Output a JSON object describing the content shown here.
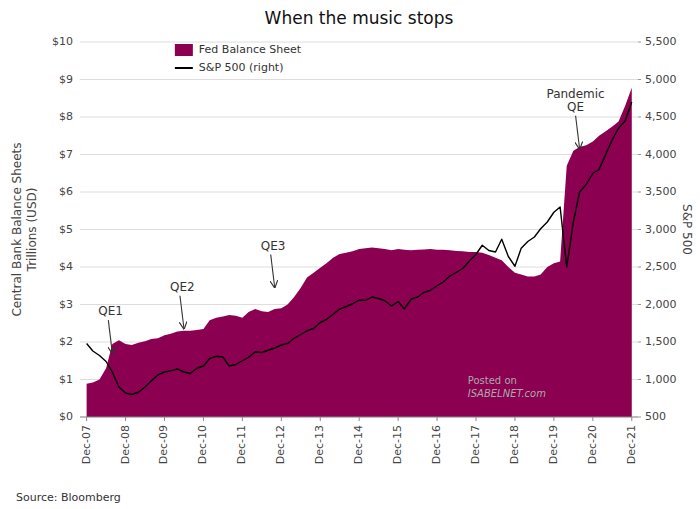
{
  "chart_data": {
    "type": "line",
    "title": "When the music stops",
    "y_label": "Central Bank Balance Sheets\nTrillions (USD)",
    "y2_label": "S&P 500",
    "source": "Source: Bloomberg",
    "watermark": [
      "Posted on",
      "ISABELNET.com"
    ],
    "grid": true,
    "legend": "top-left",
    "x": [
      2007.92,
      2008.08,
      2008.25,
      2008.42,
      2008.58,
      2008.75,
      2008.92,
      2009.08,
      2009.25,
      2009.42,
      2009.58,
      2009.75,
      2009.92,
      2010.08,
      2010.25,
      2010.42,
      2010.58,
      2010.75,
      2010.92,
      2011.08,
      2011.25,
      2011.42,
      2011.58,
      2011.75,
      2011.92,
      2012.08,
      2012.25,
      2012.42,
      2012.58,
      2012.75,
      2012.92,
      2013.08,
      2013.25,
      2013.42,
      2013.58,
      2013.75,
      2013.92,
      2014.08,
      2014.25,
      2014.42,
      2014.58,
      2014.75,
      2014.92,
      2015.08,
      2015.25,
      2015.42,
      2015.58,
      2015.75,
      2015.92,
      2016.08,
      2016.25,
      2016.42,
      2016.58,
      2016.75,
      2016.92,
      2017.08,
      2017.25,
      2017.42,
      2017.58,
      2017.75,
      2017.92,
      2018.08,
      2018.25,
      2018.42,
      2018.58,
      2018.75,
      2018.92,
      2019.08,
      2019.25,
      2019.42,
      2019.58,
      2019.75,
      2019.92,
      2020.08,
      2020.25,
      2020.42,
      2020.58,
      2020.75,
      2020.92,
      2021.08,
      2021.25,
      2021.42,
      2021.58,
      2021.75,
      2021.92
    ],
    "series": [
      {
        "name": "Fed Balance Sheet",
        "type": "area",
        "color": "#8B0050",
        "values": [
          0.89,
          0.92,
          1.0,
          1.3,
          1.95,
          2.05,
          1.95,
          1.92,
          1.98,
          2.02,
          2.08,
          2.1,
          2.18,
          2.22,
          2.28,
          2.3,
          2.3,
          2.32,
          2.35,
          2.58,
          2.65,
          2.68,
          2.72,
          2.7,
          2.65,
          2.8,
          2.88,
          2.82,
          2.8,
          2.88,
          2.9,
          3.0,
          3.2,
          3.45,
          3.72,
          3.85,
          3.98,
          4.1,
          4.25,
          4.35,
          4.38,
          4.42,
          4.48,
          4.5,
          4.52,
          4.5,
          4.48,
          4.45,
          4.48,
          4.46,
          4.45,
          4.46,
          4.47,
          4.48,
          4.46,
          4.46,
          4.45,
          4.43,
          4.42,
          4.4,
          4.4,
          4.38,
          4.32,
          4.25,
          4.18,
          4.0,
          3.85,
          3.8,
          3.75,
          3.75,
          3.8,
          4.0,
          4.1,
          4.15,
          6.7,
          7.1,
          7.2,
          7.25,
          7.35,
          7.5,
          7.62,
          7.75,
          7.88,
          8.3,
          8.78
        ]
      },
      {
        "name": "S&P 500 (right)",
        "type": "line",
        "color": "#000000",
        "axis": "y2",
        "values": [
          1480,
          1380,
          1320,
          1240,
          1100,
          900,
          820,
          800,
          830,
          900,
          980,
          1060,
          1100,
          1115,
          1140,
          1100,
          1080,
          1150,
          1180,
          1280,
          1310,
          1300,
          1180,
          1200,
          1250,
          1295,
          1370,
          1360,
          1390,
          1420,
          1460,
          1480,
          1550,
          1600,
          1650,
          1680,
          1760,
          1800,
          1870,
          1940,
          1970,
          2010,
          2060,
          2055,
          2100,
          2080,
          2050,
          1980,
          2040,
          1940,
          2070,
          2100,
          2160,
          2190,
          2250,
          2300,
          2380,
          2430,
          2480,
          2580,
          2670,
          2790,
          2720,
          2700,
          2870,
          2640,
          2510,
          2750,
          2840,
          2900,
          3010,
          3100,
          3230,
          3300,
          2500,
          3100,
          3500,
          3600,
          3750,
          3800,
          4000,
          4200,
          4350,
          4450,
          4700
        ]
      }
    ],
    "xlim": [
      2007.75,
      2022.08
    ],
    "xticks": [
      {
        "value": 2007.92,
        "label": "Dec-07"
      },
      {
        "value": 2008.92,
        "label": "Dec-08"
      },
      {
        "value": 2009.92,
        "label": "Dec-09"
      },
      {
        "value": 2010.92,
        "label": "Dec-10"
      },
      {
        "value": 2011.92,
        "label": "Dec-11"
      },
      {
        "value": 2012.92,
        "label": "Dec-12"
      },
      {
        "value": 2013.92,
        "label": "Dec-13"
      },
      {
        "value": 2014.92,
        "label": "Dec-14"
      },
      {
        "value": 2015.92,
        "label": "Dec-15"
      },
      {
        "value": 2016.92,
        "label": "Dec-16"
      },
      {
        "value": 2017.92,
        "label": "Dec-17"
      },
      {
        "value": 2018.92,
        "label": "Dec-18"
      },
      {
        "value": 2019.92,
        "label": "Dec-19"
      },
      {
        "value": 2020.92,
        "label": "Dec-20"
      },
      {
        "value": 2021.92,
        "label": "Dec-21"
      }
    ],
    "ylim": [
      0,
      10
    ],
    "yticks": [
      {
        "value": 0,
        "label": "$0"
      },
      {
        "value": 1,
        "label": "$1"
      },
      {
        "value": 2,
        "label": "$2"
      },
      {
        "value": 3,
        "label": "$3"
      },
      {
        "value": 4,
        "label": "$4"
      },
      {
        "value": 5,
        "label": "$5"
      },
      {
        "value": 6,
        "label": "$6"
      },
      {
        "value": 7,
        "label": "$7"
      },
      {
        "value": 8,
        "label": "$8"
      },
      {
        "value": 9,
        "label": "$9"
      },
      {
        "value": 10,
        "label": "$10"
      }
    ],
    "y2lim": [
      500,
      5500
    ],
    "y2ticks": [
      500,
      {
        "value": 1000,
        "label": "1,000"
      },
      {
        "value": 1500,
        "label": "1,500"
      },
      {
        "value": 2000,
        "label": "2,000"
      },
      {
        "value": 2500,
        "label": "2,500"
      },
      {
        "value": 3000,
        "label": "3,000"
      },
      {
        "value": 3500,
        "label": "3,500"
      },
      {
        "value": 4000,
        "label": "4,000"
      },
      {
        "value": 4500,
        "label": "4,500"
      },
      {
        "value": 5000,
        "label": "5,000"
      },
      {
        "value": 5500,
        "label": "5,500"
      }
    ],
    "annotations": [
      {
        "text": "QE1",
        "x": 2008.58,
        "y": 1.65
      },
      {
        "text": "QE2",
        "x": 2010.42,
        "y": 2.3
      },
      {
        "text": "QE3",
        "x": 2012.75,
        "y": 3.4
      },
      {
        "text": "Pandemic\nQE",
        "x": 2020.58,
        "y": 7.1
      }
    ]
  }
}
